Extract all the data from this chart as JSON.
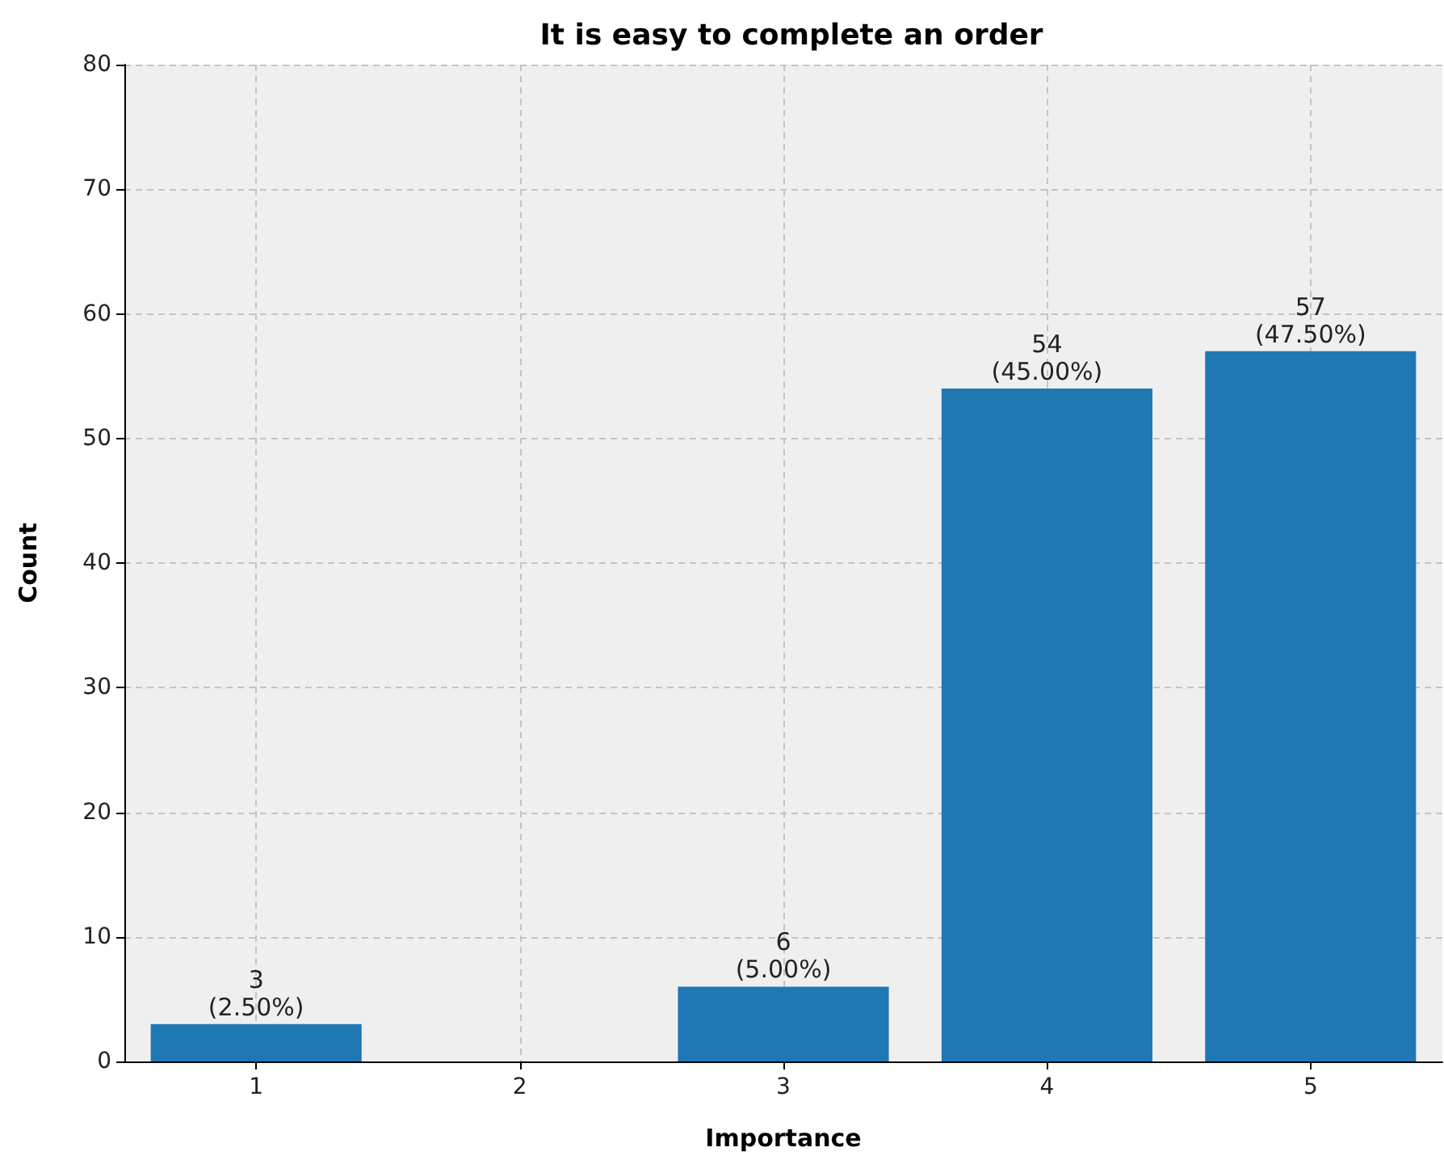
{
  "chart_data": {
    "type": "bar",
    "title": "It is easy to complete an order",
    "xlabel": "Importance",
    "ylabel": "Count",
    "categories": [
      "1",
      "2",
      "3",
      "4",
      "5"
    ],
    "values": [
      3,
      0,
      6,
      54,
      57
    ],
    "value_labels": [
      "3\n(2.50%)",
      null,
      "6\n(5.00%)",
      "54\n(45.00%)",
      "57\n(47.50%)"
    ],
    "color": "#1f77b4",
    "ylim": [
      0,
      80
    ],
    "yticks": [
      0,
      10,
      20,
      30,
      40,
      50,
      60,
      70,
      80
    ],
    "grid": true
  }
}
